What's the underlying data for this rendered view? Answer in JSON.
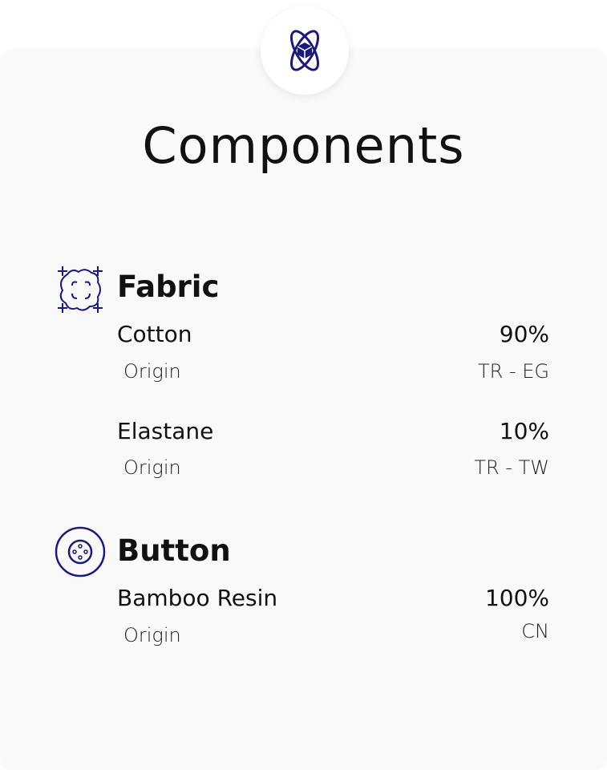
{
  "header": {
    "icon": "atom-cube-icon",
    "title": "Components"
  },
  "accent_color": "#1a1a7a",
  "sections": [
    {
      "title": "Fabric",
      "icon": "cotton-fabric-icon",
      "items": [
        {
          "name": "Cotton",
          "percent": "90%",
          "origin_label": "Origin",
          "origin": "TR - EG"
        },
        {
          "name": "Elastane",
          "percent": "10%",
          "origin_label": "Origin",
          "origin": "TR - TW"
        }
      ]
    },
    {
      "title": "Button",
      "icon": "button-icon",
      "items": [
        {
          "name": "Bamboo Resin",
          "percent": "100%",
          "origin_label": "Origin",
          "origin": "CN"
        }
      ]
    }
  ]
}
